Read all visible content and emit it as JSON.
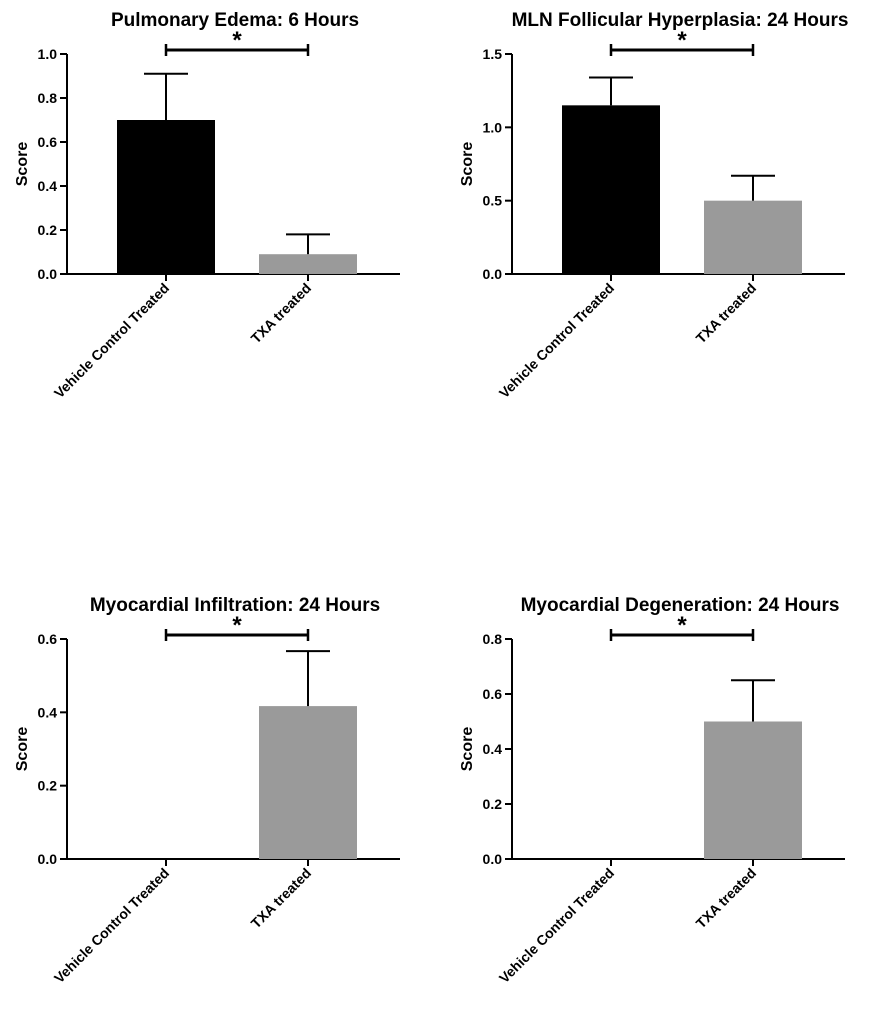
{
  "chart_data": [
    {
      "type": "bar",
      "title": "Pulmonary Edema: 6 Hours",
      "ylabel": "Score",
      "categories": [
        "Vehicle Control Treated",
        "TXA treated"
      ],
      "values": [
        0.7,
        0.09
      ],
      "errors": [
        0.21,
        0.09
      ],
      "colors": [
        "#000000",
        "#9a9a9a"
      ],
      "ylim": [
        0,
        1.0
      ],
      "yticks": [
        0.0,
        0.2,
        0.4,
        0.6,
        0.8,
        1.0
      ],
      "ytick_labels": [
        "0.0",
        "0.2",
        "0.4",
        "0.6",
        "0.8",
        "1.0"
      ],
      "significance": "*"
    },
    {
      "type": "bar",
      "title": "MLN Follicular Hyperplasia: 24 Hours",
      "ylabel": "Score",
      "categories": [
        "Vehicle Control Treated",
        "TXA treated"
      ],
      "values": [
        1.15,
        0.5
      ],
      "errors": [
        0.19,
        0.17
      ],
      "colors": [
        "#000000",
        "#9a9a9a"
      ],
      "ylim": [
        0,
        1.5
      ],
      "yticks": [
        0.0,
        0.5,
        1.0,
        1.5
      ],
      "ytick_labels": [
        "0.0",
        "0.5",
        "1.0",
        "1.5"
      ],
      "significance": "*"
    },
    {
      "type": "bar",
      "title": "Myocardial Infiltration: 24 Hours",
      "ylabel": "Score",
      "categories": [
        "Vehicle Control Treated",
        "TXA treated"
      ],
      "values": [
        0.0,
        0.417
      ],
      "errors": [
        0.0,
        0.15
      ],
      "colors": [
        "#000000",
        "#9a9a9a"
      ],
      "ylim": [
        0,
        0.6
      ],
      "yticks": [
        0.0,
        0.2,
        0.4,
        0.6
      ],
      "ytick_labels": [
        "0.0",
        "0.2",
        "0.4",
        "0.6"
      ],
      "significance": "*"
    },
    {
      "type": "bar",
      "title": "Myocardial Degeneration: 24 Hours",
      "ylabel": "Score",
      "categories": [
        "Vehicle Control Treated",
        "TXA treated"
      ],
      "values": [
        0.0,
        0.5
      ],
      "errors": [
        0.0,
        0.15
      ],
      "colors": [
        "#000000",
        "#9a9a9a"
      ],
      "ylim": [
        0,
        0.8
      ],
      "yticks": [
        0.0,
        0.2,
        0.4,
        0.6,
        0.8
      ],
      "ytick_labels": [
        "0.0",
        "0.2",
        "0.4",
        "0.6",
        "0.8"
      ],
      "significance": "*"
    }
  ]
}
